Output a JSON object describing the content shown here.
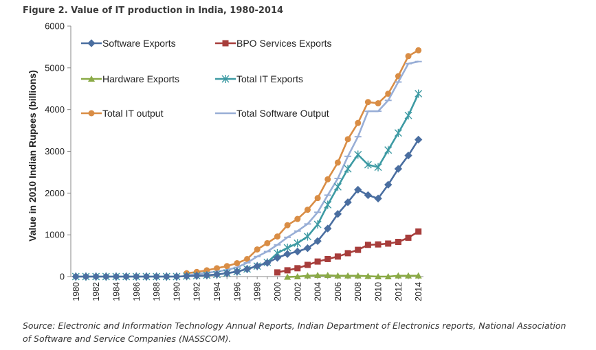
{
  "figure_title": "Figure 2. Value of IT production in India, 1980-2014",
  "source_text": "Source: Electronic and Information Technology Annual Reports, Indian Department of Electronics reports, National Association of Software and Service Companies (NASSCOM).",
  "chart_data": {
    "type": "line",
    "title": "Figure 2. Value of IT production in India, 1980-2014",
    "xlabel": "",
    "ylabel": "Value in 2010 Indian Rupees (billions)",
    "ylim": [
      0,
      6000
    ],
    "yticks": [
      "0",
      "1000",
      "2000",
      "3000",
      "4000",
      "5000",
      "6000"
    ],
    "xticks": [
      "1980",
      "1982",
      "1984",
      "1986",
      "1988",
      "1990",
      "1992",
      "1994",
      "1996",
      "1998",
      "2000",
      "2002",
      "2004",
      "2006",
      "2008",
      "2010",
      "2012",
      "2014"
    ],
    "x": [
      1980,
      1981,
      1982,
      1983,
      1984,
      1985,
      1986,
      1987,
      1988,
      1989,
      1990,
      1991,
      1992,
      1993,
      1994,
      1995,
      1996,
      1997,
      1998,
      1999,
      2000,
      2001,
      2002,
      2003,
      2004,
      2005,
      2006,
      2007,
      2008,
      2009,
      2010,
      2011,
      2012,
      2013,
      2014
    ],
    "grid": false,
    "legend_position": "top-left, inside plot, two columns",
    "series": [
      {
        "name": "Software Exports",
        "color": "#4a6ea0",
        "marker": "diamond",
        "values": [
          0,
          0,
          0,
          0,
          0,
          0,
          0,
          0,
          0,
          0,
          0,
          10,
          20,
          30,
          50,
          80,
          120,
          180,
          250,
          330,
          450,
          540,
          600,
          680,
          850,
          1150,
          1500,
          1780,
          2080,
          1950,
          1870,
          2200,
          2580,
          2900,
          3280
        ]
      },
      {
        "name": "BPO Services Exports",
        "color": "#a73d3b",
        "marker": "square",
        "values": [
          null,
          null,
          null,
          null,
          null,
          null,
          null,
          null,
          null,
          null,
          null,
          null,
          null,
          null,
          null,
          null,
          null,
          null,
          null,
          null,
          100,
          150,
          200,
          280,
          360,
          420,
          480,
          560,
          640,
          760,
          770,
          790,
          830,
          930,
          1080
        ]
      },
      {
        "name": "Hardware Exports",
        "color": "#8aaa46",
        "marker": "triangle",
        "values": [
          null,
          null,
          null,
          null,
          null,
          null,
          null,
          null,
          null,
          null,
          null,
          null,
          null,
          null,
          null,
          null,
          null,
          null,
          null,
          null,
          null,
          -10,
          0,
          20,
          30,
          30,
          20,
          20,
          20,
          10,
          0,
          0,
          20,
          20,
          20
        ]
      },
      {
        "name": "Total IT Exports",
        "color": "#3d9aa3",
        "marker": "star",
        "values": [
          0,
          0,
          0,
          0,
          0,
          0,
          0,
          0,
          0,
          0,
          0,
          10,
          20,
          30,
          50,
          80,
          120,
          180,
          250,
          340,
          560,
          690,
          800,
          960,
          1250,
          1720,
          2150,
          2580,
          2920,
          2680,
          2620,
          3030,
          3440,
          3860,
          4380
        ]
      },
      {
        "name": "Total IT output",
        "color": "#d98d45",
        "marker": "circle",
        "values": [
          null,
          null,
          null,
          null,
          null,
          null,
          null,
          null,
          null,
          null,
          null,
          80,
          110,
          150,
          200,
          250,
          320,
          420,
          650,
          800,
          960,
          1230,
          1380,
          1600,
          1880,
          2330,
          2730,
          3290,
          3680,
          4180,
          4150,
          4380,
          4800,
          5280,
          5420
        ]
      },
      {
        "name": "Total Software Output",
        "color": "#98aed6",
        "marker": "dash",
        "values": [
          null,
          null,
          null,
          null,
          null,
          null,
          null,
          null,
          null,
          null,
          null,
          30,
          60,
          90,
          120,
          160,
          220,
          330,
          480,
          600,
          760,
          940,
          1090,
          1260,
          1540,
          1950,
          2350,
          2880,
          3350,
          3960,
          3960,
          4220,
          4660,
          5100,
          5150
        ]
      }
    ]
  }
}
